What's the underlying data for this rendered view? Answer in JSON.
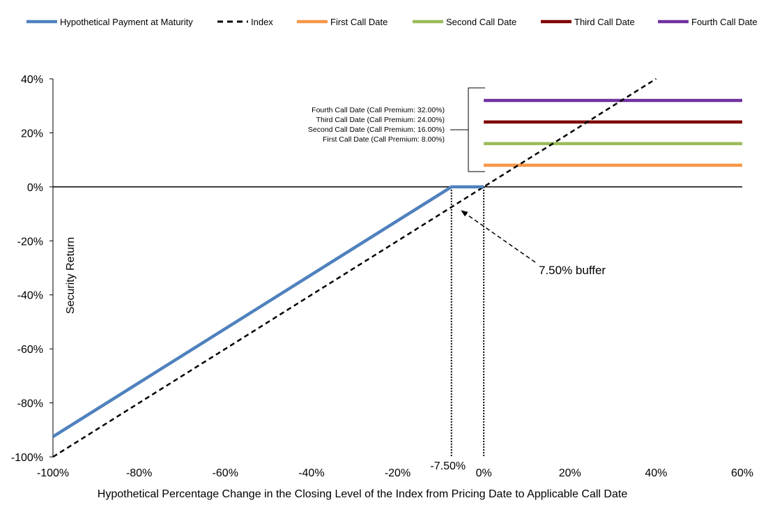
{
  "chart_data": {
    "type": "line",
    "xlabel": "Hypothetical Percentage Change in the Closing Level of the Index from Pricing Date to Applicable Call Date",
    "ylabel": "Security Return",
    "xlim": [
      -100,
      60
    ],
    "ylim": [
      -100,
      40
    ],
    "x_ticks": [
      -100,
      -80,
      -60,
      -40,
      -20,
      0,
      20,
      40,
      60
    ],
    "y_ticks": [
      -100,
      -80,
      -60,
      -40,
      -20,
      0,
      20,
      40
    ],
    "x_tick_labels": [
      "-100%",
      "-80%",
      "-60%",
      "-40%",
      "-20%",
      "0%",
      "20%",
      "40%",
      "60%"
    ],
    "y_tick_labels": [
      "-100%",
      "-80%",
      "-60%",
      "-40%",
      "-20%",
      "0%",
      "20%",
      "40%"
    ],
    "extra_x_tick_label": "-7.50%",
    "extra_x_tick_value": -7.5,
    "grid": false,
    "legend_position": "top",
    "series": [
      {
        "name": "Hypothetical Payment at Maturity",
        "color": "#4F81BD",
        "style": "solid",
        "x": [
          -100,
          -7.5,
          0
        ],
        "y": [
          -92.5,
          0,
          0
        ]
      },
      {
        "name": "Index",
        "color": "#000000",
        "style": "dashed",
        "x": [
          -100,
          40
        ],
        "y": [
          -100,
          40
        ]
      },
      {
        "name": "First Call Date",
        "color": "#F79646",
        "style": "solid",
        "x": [
          0,
          60
        ],
        "y": [
          8,
          8
        ]
      },
      {
        "name": "Second Call Date",
        "color": "#9BBB59",
        "style": "solid",
        "x": [
          0,
          60
        ],
        "y": [
          16,
          16
        ]
      },
      {
        "name": "Third Call Date",
        "color": "#7F0000",
        "style": "solid",
        "x": [
          0,
          60
        ],
        "y": [
          24,
          24
        ]
      },
      {
        "name": "Fourth Call Date",
        "color": "#7030A0",
        "style": "solid",
        "x": [
          0,
          60
        ],
        "y": [
          32,
          32
        ]
      }
    ],
    "annotations": {
      "call_labels": [
        "Fourth Call Date (Call Premium: 32.00%)",
        "Third Call Date (Call Premium: 24.00%)",
        "Second Call Date (Call Premium: 16.00%)",
        "First Call Date (Call Premium: 8.00%)"
      ],
      "buffer_label": "7.50% buffer"
    }
  }
}
